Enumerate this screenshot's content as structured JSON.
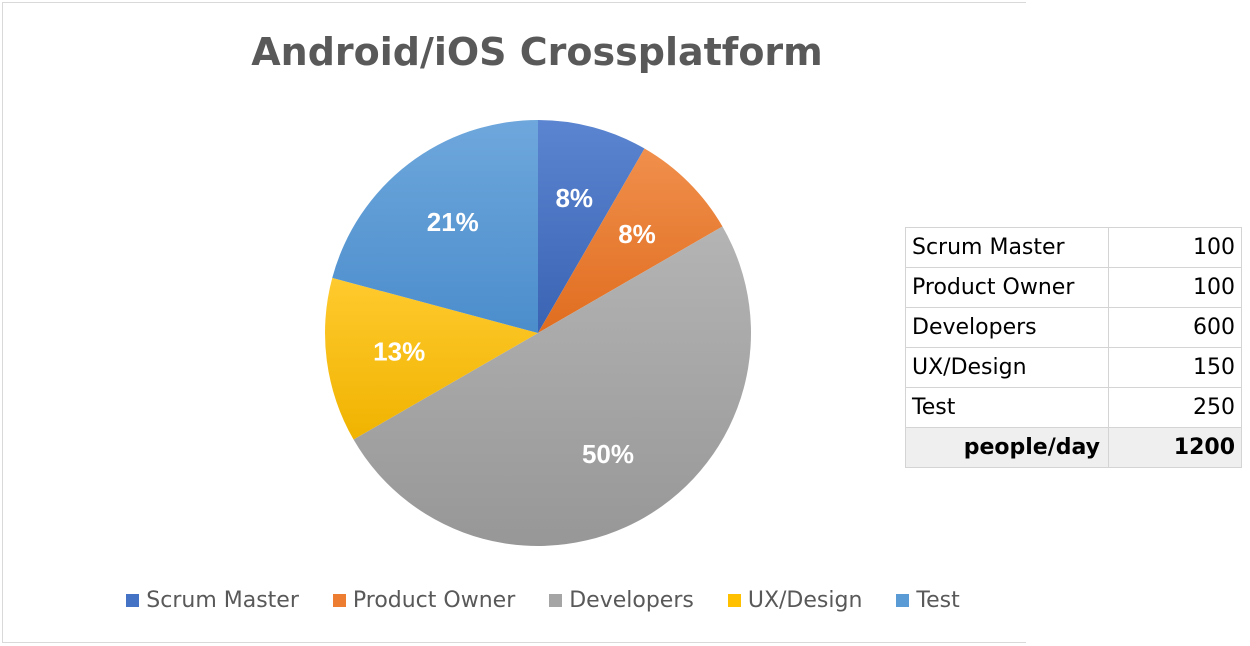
{
  "chart_data": {
    "type": "pie",
    "title": "Android/iOS Crossplatform",
    "categories": [
      "Scrum Master",
      "Product Owner",
      "Developers",
      "UX/Design",
      "Test"
    ],
    "values": [
      100,
      100,
      600,
      150,
      250
    ],
    "percent_labels": [
      "8%",
      "8%",
      "50%",
      "13%",
      "21%"
    ],
    "colors": [
      "#4472C4",
      "#ED7D31",
      "#A5A5A5",
      "#FFC000",
      "#5B9BD5"
    ],
    "legend": "bottom"
  },
  "table": {
    "rows": [
      {
        "label": "Scrum Master",
        "value": "100"
      },
      {
        "label": "Product Owner",
        "value": "100"
      },
      {
        "label": "Developers",
        "value": "600"
      },
      {
        "label": "UX/Design",
        "value": "150"
      },
      {
        "label": "Test",
        "value": "250"
      }
    ],
    "total": {
      "label": "people/day",
      "value": "1200"
    }
  }
}
